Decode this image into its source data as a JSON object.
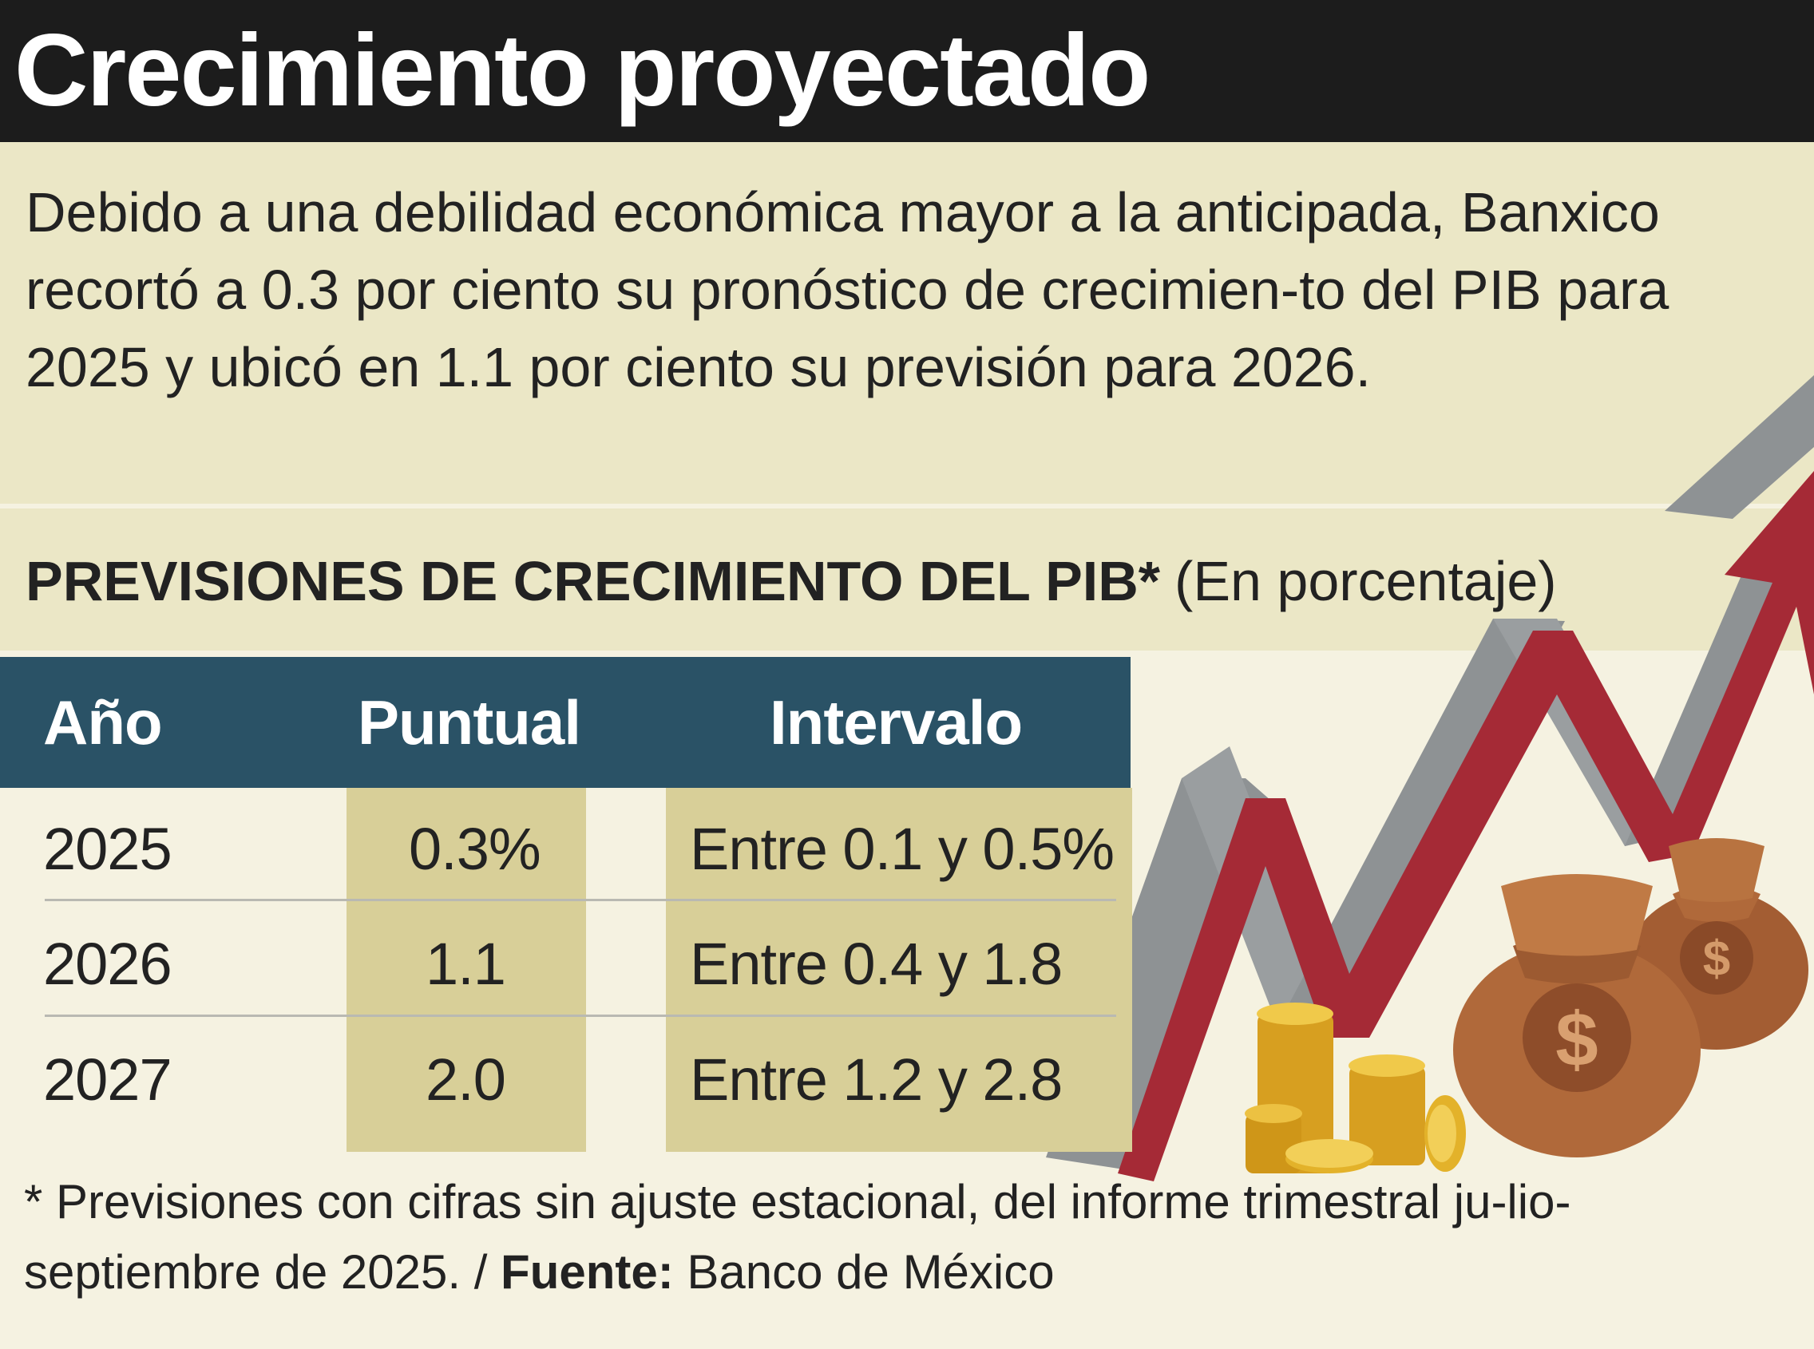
{
  "title": "Crecimiento proyectado",
  "intro_text": "Debido a una debilidad económica mayor a la anticipada, Banxico recortó a 0.3 por ciento su pronóstico de crecimien-to del PIB para 2025 y ubicó en 1.1 por ciento su previsión para 2026.",
  "chart_data": {
    "type": "table",
    "title": "PREVISIONES DE CRECIMIENTO DEL PIB*",
    "subtitle": "(En porcentaje)",
    "columns": [
      "Año",
      "Puntual",
      "Intervalo"
    ],
    "rows": [
      {
        "year": "2025",
        "point": "0.3%",
        "interval": "Entre 0.1 y 0.5%"
      },
      {
        "year": "2026",
        "point": "1.1",
        "interval": "Entre 0.4 y 1.8"
      },
      {
        "year": "2027",
        "point": "2.0",
        "interval": "Entre 1.2 y 2.8"
      }
    ]
  },
  "footnote": {
    "note": "* Previsiones con cifras sin ajuste estacional, del informe trimestral ju-lio-septiembre de 2025. / ",
    "source_label": "Fuente:",
    "source_value": "Banco de México"
  },
  "colors": {
    "title_bar": "#1c1c1c",
    "panel": "#ebe7c6",
    "background": "#f5f2e1",
    "table_header": "#2a5266",
    "column_highlight": "#d8cf98",
    "arrow_red": "#a52a36",
    "arrow_gray": "#8e9294",
    "bag_brown": "#b0693a",
    "coin_gold": "#e3b22a"
  },
  "illustration": {
    "icons": [
      "growth-arrow-icon",
      "money-bag-icon",
      "money-bag-icon",
      "coin-stack-icon",
      "dollar-sign-icon"
    ]
  }
}
